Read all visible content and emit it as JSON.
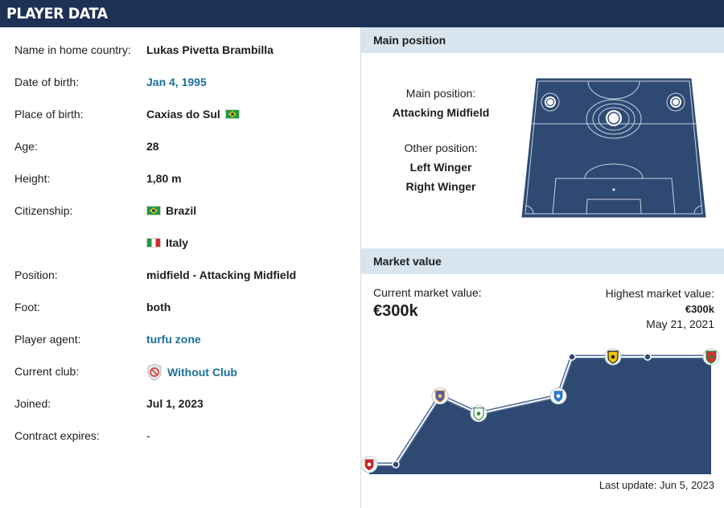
{
  "header": {
    "title": "PLAYER DATA"
  },
  "player": {
    "rows": [
      {
        "label": "Name in home country:",
        "value": "Lukas Pivetta Brambilla"
      },
      {
        "label": "Date of birth:",
        "value": "Jan 4, 1995"
      },
      {
        "label": "Place of birth:",
        "value": "Caxias do Sul"
      },
      {
        "label": "Age:",
        "value": "28"
      },
      {
        "label": "Height:",
        "value": "1,80 m"
      },
      {
        "label": "Citizenship:",
        "value": "Brazil"
      },
      {
        "label": "",
        "value": "Italy"
      },
      {
        "label": "Position:",
        "value": "midfield - Attacking Midfield"
      },
      {
        "label": "Foot:",
        "value": "both"
      },
      {
        "label": "Player agent:",
        "value": "turfu zone"
      },
      {
        "label": "Current club:",
        "value": "Without Club"
      },
      {
        "label": "Joined:",
        "value": "Jul 1, 2023"
      },
      {
        "label": "Contract expires:",
        "value": "-"
      }
    ]
  },
  "main_position": {
    "heading": "Main position",
    "main_label": "Main position:",
    "main_value": "Attacking Midfield",
    "other_label": "Other position:",
    "other_values": [
      "Left Winger",
      "Right Winger"
    ]
  },
  "market_value": {
    "heading": "Market value",
    "current_label": "Current market value:",
    "current_value": "€300k",
    "highest_label": "Highest market value:",
    "highest_value": "€300k",
    "highest_date": "May 21, 2021",
    "last_update": "Last update: Jun 5, 2023",
    "colors": {
      "area": "#2e4a73",
      "line": "#ffffff"
    }
  },
  "chart_data": {
    "type": "area",
    "points": [
      {
        "index": 0,
        "value": 25,
        "club_icon": "red-crest-icon"
      },
      {
        "index": 1,
        "value": 25,
        "club_icon": "none"
      },
      {
        "index": 2,
        "value": 200,
        "club_icon": "blue-purple-crest-icon"
      },
      {
        "index": 3,
        "value": 155,
        "club_icon": "green-crest-icon"
      },
      {
        "index": 4,
        "value": 200,
        "club_icon": "blue-swirl-crest-icon"
      },
      {
        "index": 5,
        "value": 300,
        "club_icon": "none"
      },
      {
        "index": 6,
        "value": 300,
        "club_icon": "yellow-black-crest-icon"
      },
      {
        "index": 7,
        "value": 300,
        "club_icon": "none"
      },
      {
        "index": 8,
        "value": 300,
        "club_icon": "red-green-crest-icon"
      }
    ],
    "y_unit": "€k",
    "ylim": [
      0,
      300
    ]
  }
}
